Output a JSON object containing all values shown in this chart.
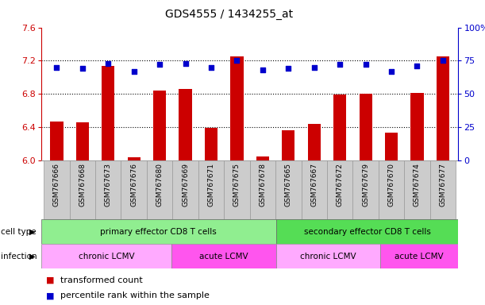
{
  "title": "GDS4555 / 1434255_at",
  "samples": [
    "GSM767666",
    "GSM767668",
    "GSM767673",
    "GSM767676",
    "GSM767680",
    "GSM767669",
    "GSM767671",
    "GSM767675",
    "GSM767678",
    "GSM767665",
    "GSM767667",
    "GSM767672",
    "GSM767679",
    "GSM767670",
    "GSM767674",
    "GSM767677"
  ],
  "red_values": [
    6.47,
    6.46,
    7.14,
    6.03,
    6.84,
    6.86,
    6.39,
    7.25,
    6.04,
    6.36,
    6.44,
    6.79,
    6.8,
    6.33,
    6.81,
    7.25
  ],
  "blue_values": [
    70,
    69,
    73,
    67,
    72,
    73,
    70,
    75,
    68,
    69,
    70,
    72,
    72,
    67,
    71,
    75
  ],
  "ylim_left": [
    6.0,
    7.6
  ],
  "ylim_right": [
    0,
    100
  ],
  "yticks_left": [
    6.0,
    6.4,
    6.8,
    7.2,
    7.6
  ],
  "yticks_right": [
    0,
    25,
    50,
    75,
    100
  ],
  "ytick_labels_right": [
    "0",
    "25",
    "50",
    "75",
    "100%"
  ],
  "grid_values": [
    6.4,
    6.8,
    7.2
  ],
  "bar_color": "#CC0000",
  "dot_color": "#0000CC",
  "bar_width": 0.5,
  "left_axis_color": "#CC0000",
  "right_axis_color": "#0000CC",
  "cell_type_groups": [
    {
      "label": "primary effector CD8 T cells",
      "start": 0,
      "end": 8,
      "color": "#90EE90"
    },
    {
      "label": "secondary effector CD8 T cells",
      "start": 9,
      "end": 15,
      "color": "#55DD55"
    }
  ],
  "infection_groups": [
    {
      "label": "chronic LCMV",
      "start": 0,
      "end": 4,
      "color": "#FFAAFF"
    },
    {
      "label": "acute LCMV",
      "start": 5,
      "end": 8,
      "color": "#FF55EE"
    },
    {
      "label": "chronic LCMV",
      "start": 9,
      "end": 12,
      "color": "#FFAAFF"
    },
    {
      "label": "acute LCMV",
      "start": 13,
      "end": 15,
      "color": "#FF55EE"
    }
  ],
  "legend_items": [
    {
      "color": "#CC0000",
      "label": "transformed count"
    },
    {
      "color": "#0000CC",
      "label": "percentile rank within the sample"
    }
  ],
  "sample_bg_color": "#CCCCCC",
  "sample_border_color": "#999999"
}
